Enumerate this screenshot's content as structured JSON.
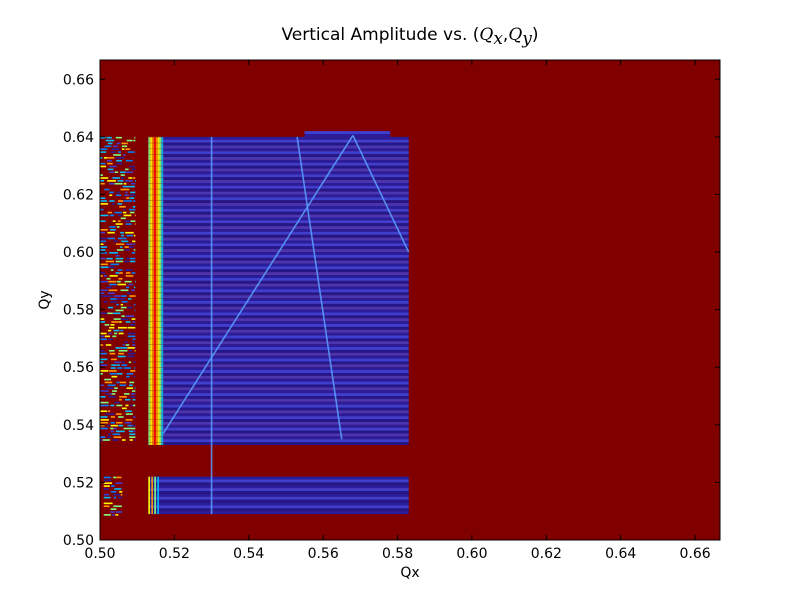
{
  "chart_data": {
    "type": "heatmap",
    "title": {
      "prefix": "Vertical Amplitude vs. (",
      "q1": "Q",
      "sub1": "x",
      "comma": ",",
      "q2": "Q",
      "sub2": "y",
      "suffix": ")"
    },
    "xlabel": "Qx",
    "ylabel": "Qy",
    "xlim": [
      0.5,
      0.6667
    ],
    "ylim": [
      0.5,
      0.6667
    ],
    "x_ticks": [
      "0.50",
      "0.52",
      "0.54",
      "0.56",
      "0.58",
      "0.60",
      "0.62",
      "0.64",
      "0.66"
    ],
    "y_ticks": [
      "0.50",
      "0.52",
      "0.54",
      "0.56",
      "0.58",
      "0.60",
      "0.62",
      "0.64",
      "0.66"
    ],
    "grid": false,
    "colormap": "jet",
    "background_value_color": "#800000",
    "line_spacing": 0.002,
    "regions": [
      {
        "name": "left-strip",
        "x": [
          0.5,
          0.5095
        ],
        "y": [
          0.534,
          0.64
        ],
        "value": "mixed"
      },
      {
        "name": "left-strip-low",
        "x": [
          0.501,
          0.506
        ],
        "y": [
          0.508,
          0.522
        ],
        "value": "mixed"
      },
      {
        "name": "resonance-edge",
        "x": [
          0.513,
          0.517
        ],
        "y": [
          0.533,
          0.64
        ],
        "value": "high"
      },
      {
        "name": "main-block",
        "x": [
          0.517,
          0.583
        ],
        "y": [
          0.533,
          0.64
        ],
        "value": "low"
      },
      {
        "name": "lower-block",
        "x": [
          0.513,
          0.583
        ],
        "y": [
          0.509,
          0.522
        ],
        "value": "low"
      },
      {
        "name": "top-notch",
        "x": [
          0.555,
          0.578
        ],
        "y": [
          0.64,
          0.642
        ],
        "value": "low"
      }
    ],
    "resonance_lines": [
      {
        "from": [
          0.517,
          0.537
        ],
        "to": [
          0.568,
          0.6405
        ]
      },
      {
        "from": [
          0.568,
          0.6405
        ],
        "to": [
          0.583,
          0.6
        ]
      },
      {
        "from": [
          0.53,
          0.64
        ],
        "to": [
          0.53,
          0.509
        ]
      },
      {
        "from": [
          0.553,
          0.64
        ],
        "to": [
          0.565,
          0.535
        ]
      }
    ]
  }
}
